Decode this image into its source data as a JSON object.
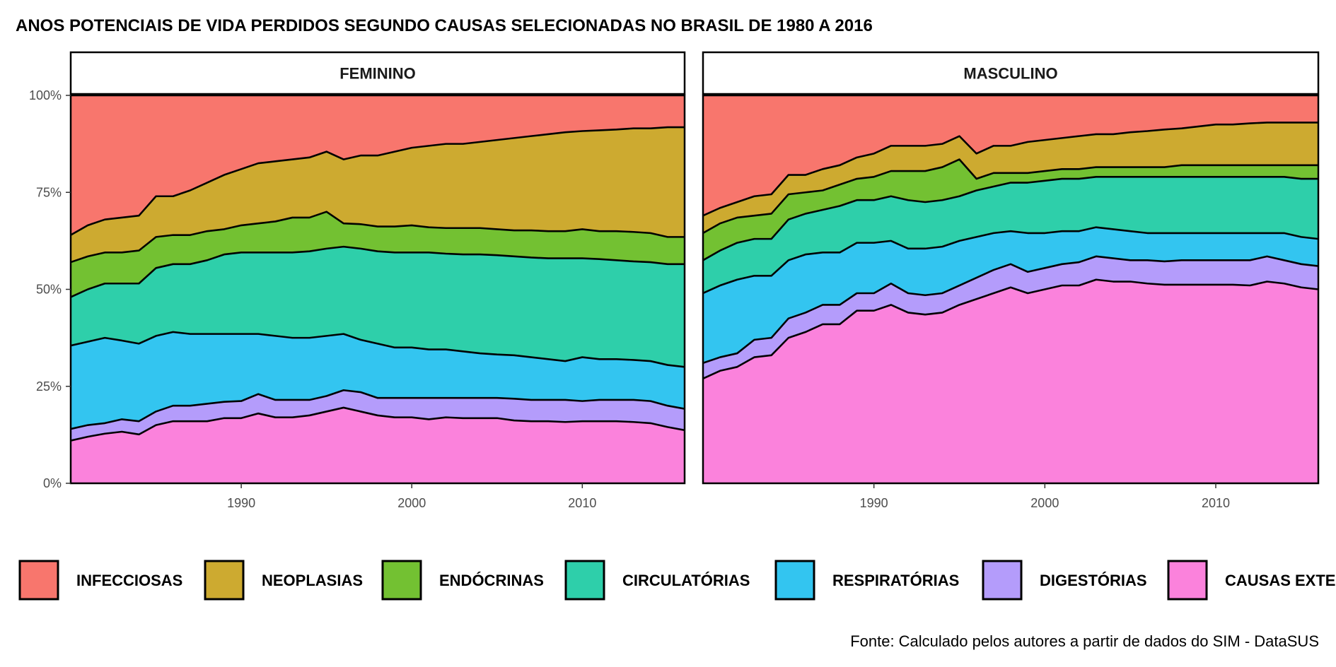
{
  "chart_data": {
    "type": "area",
    "stacked": "percent",
    "title": "ANOS POTENCIAIS DE VIDA PERDIDOS SEGUNDO CAUSAS SELECIONADAS NO BRASIL DE 1980 A 2016",
    "caption": "Fonte: Calculado pelos autores a partir de dados do SIM - DataSUS",
    "xlim": [
      1980,
      2016
    ],
    "ylim": [
      0,
      100
    ],
    "x_ticks": [
      1990,
      2000,
      2010
    ],
    "y_ticks": [
      0,
      25,
      50,
      75,
      100
    ],
    "y_tick_labels": [
      "0%",
      "25%",
      "50%",
      "75%",
      "100%"
    ],
    "legend_position": "bottom",
    "grid": false,
    "series_colors": [
      "#F8766D",
      "#CDAA30",
      "#73C132",
      "#2ECFAA",
      "#33C5F0",
      "#B49CFB",
      "#FB82DC"
    ],
    "legend": [
      "INFECCIOSAS",
      "NEOPLASIAS",
      "ENDÓCRINAS",
      "CIRCULATÓRIAS",
      "RESPIRATÓRIAS",
      "DIGESTÓRIAS",
      "CAUSAS EXTERNAS"
    ],
    "facets": [
      {
        "title": "FEMININO",
        "x": [
          1980,
          1981,
          1982,
          1983,
          1984,
          1985,
          1986,
          1987,
          1988,
          1989,
          1990,
          1991,
          1992,
          1993,
          1994,
          1995,
          1996,
          1997,
          1998,
          1999,
          2000,
          2001,
          2002,
          2003,
          2004,
          2005,
          2006,
          2007,
          2008,
          2009,
          2010,
          2011,
          2012,
          2013,
          2014,
          2015,
          2016
        ],
        "cumulative_boundaries": [
          [
            11,
            12,
            12.8,
            13.3,
            12.6,
            15,
            16,
            16,
            16,
            16.8,
            16.8,
            18,
            17,
            17,
            17.5,
            18.5,
            19.5,
            18.5,
            17.5,
            17,
            17,
            16.5,
            17,
            16.8,
            16.8,
            16.8,
            16.2,
            16,
            16,
            15.8,
            16,
            16,
            16,
            15.8,
            15.5,
            14.5,
            13.7
          ],
          [
            14,
            15,
            15.5,
            16.5,
            16,
            18.5,
            20,
            20,
            20.5,
            21,
            21.2,
            23,
            21.5,
            21.5,
            21.5,
            22.5,
            24,
            23.5,
            22,
            22,
            22,
            22,
            22,
            22,
            22,
            22,
            21.8,
            21.5,
            21.5,
            21.5,
            21.2,
            21.5,
            21.5,
            21.5,
            21.2,
            20,
            19.2
          ],
          [
            35.5,
            36.5,
            37.5,
            36.8,
            36,
            38,
            39,
            38.5,
            38.5,
            38.5,
            38.5,
            38.5,
            38,
            37.5,
            37.5,
            38,
            38.5,
            37,
            36,
            35,
            35,
            34.5,
            34.5,
            34,
            33.5,
            33.2,
            33,
            32.5,
            32,
            31.5,
            32.5,
            32,
            32,
            31.8,
            31.5,
            30.5,
            30
          ],
          [
            48,
            50,
            51.5,
            51.5,
            51.5,
            55.5,
            56.5,
            56.5,
            57.5,
            59,
            59.5,
            59.5,
            59.5,
            59.5,
            59.8,
            60.5,
            61,
            60.5,
            59.8,
            59.5,
            59.5,
            59.5,
            59.2,
            59,
            59,
            58.8,
            58.5,
            58.2,
            58,
            58,
            58,
            57.8,
            57.5,
            57.2,
            57,
            56.5,
            56.5
          ],
          [
            57,
            58.5,
            59.5,
            59.5,
            60,
            63.5,
            64,
            64,
            65,
            65.5,
            66.5,
            67,
            67.5,
            68.5,
            68.5,
            70,
            67,
            66.8,
            66.2,
            66.2,
            66.5,
            66,
            65.8,
            65.8,
            65.8,
            65.5,
            65.2,
            65.2,
            65,
            65,
            65.5,
            65,
            65,
            64.8,
            64.5,
            63.5,
            63.5
          ],
          [
            64,
            66.5,
            68,
            68.5,
            69,
            74,
            74,
            75.5,
            77.5,
            79.5,
            81,
            82.5,
            83,
            83.5,
            84,
            85.5,
            83.5,
            84.5,
            84.5,
            85.5,
            86.5,
            87,
            87.5,
            87.5,
            88,
            88.5,
            89,
            89.5,
            90,
            90.5,
            90.8,
            91,
            91.2,
            91.5,
            91.5,
            91.8,
            91.8
          ]
        ]
      },
      {
        "title": "MASCULINO",
        "x": [
          1980,
          1981,
          1982,
          1983,
          1984,
          1985,
          1986,
          1987,
          1988,
          1989,
          1990,
          1991,
          1992,
          1993,
          1994,
          1995,
          1996,
          1997,
          1998,
          1999,
          2000,
          2001,
          2002,
          2003,
          2004,
          2005,
          2006,
          2007,
          2008,
          2009,
          2010,
          2011,
          2012,
          2013,
          2014,
          2015,
          2016
        ],
        "cumulative_boundaries": [
          [
            27,
            29,
            30,
            32.5,
            33,
            37.5,
            39,
            41,
            41,
            44.5,
            44.5,
            46,
            44,
            43.5,
            44,
            46,
            47.5,
            49,
            50.5,
            49,
            50,
            51,
            51,
            52.5,
            52,
            52,
            51.5,
            51.2,
            51.2,
            51.2,
            51.2,
            51.2,
            51,
            52,
            51.5,
            50.5,
            50
          ],
          [
            31,
            32.5,
            33.5,
            37,
            37.5,
            42.5,
            44,
            46,
            46,
            49,
            49,
            51.5,
            49,
            48.5,
            49,
            51,
            53,
            55,
            56.5,
            54.5,
            55.5,
            56.5,
            57,
            58.5,
            58,
            57.5,
            57.5,
            57.2,
            57.5,
            57.5,
            57.5,
            57.5,
            57.5,
            58.5,
            57.5,
            56.5,
            56
          ],
          [
            49,
            51,
            52.5,
            53.5,
            53.5,
            57.5,
            59,
            59.5,
            59.5,
            62,
            62,
            62.5,
            60.5,
            60.5,
            61,
            62.5,
            63.5,
            64.5,
            65,
            64.5,
            64.5,
            65,
            65,
            66,
            65.5,
            65,
            64.5,
            64.5,
            64.5,
            64.5,
            64.5,
            64.5,
            64.5,
            64.5,
            64.5,
            63.5,
            63
          ],
          [
            57.5,
            60,
            62,
            63,
            63,
            68,
            69.5,
            70.5,
            71.5,
            73,
            73,
            74,
            73,
            72.5,
            73,
            74,
            75.5,
            76.5,
            77.5,
            77.5,
            78,
            78.5,
            78.5,
            79,
            79,
            79,
            79,
            79,
            79,
            79,
            79,
            79,
            79,
            79,
            79,
            78.5,
            78.5
          ],
          [
            64.5,
            67,
            68.5,
            69,
            69.5,
            74.5,
            75,
            75.5,
            77,
            78.5,
            79,
            80.5,
            80.5,
            80.5,
            81.5,
            83.5,
            78.5,
            80,
            80,
            80,
            80.5,
            81,
            81,
            81.5,
            81.5,
            81.5,
            81.5,
            81.5,
            82,
            82,
            82,
            82,
            82,
            82,
            82,
            82,
            82
          ],
          [
            69,
            71,
            72.5,
            74,
            74.5,
            79.5,
            79.5,
            81,
            82,
            84,
            85,
            87,
            87,
            87,
            87.5,
            89.5,
            85,
            87,
            87,
            88,
            88.5,
            89,
            89.5,
            90,
            90,
            90.5,
            90.8,
            91.2,
            91.5,
            92,
            92.5,
            92.5,
            92.8,
            93,
            93,
            93,
            93
          ]
        ]
      }
    ]
  }
}
